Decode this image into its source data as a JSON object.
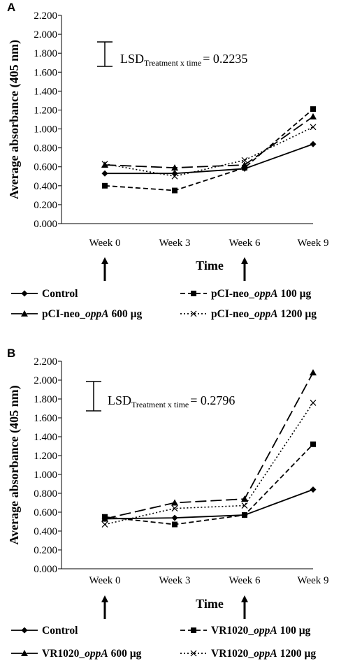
{
  "chart_data": [
    {
      "panel": "A",
      "type": "line",
      "ylabel": "Average absorbance (405 nm)",
      "xlabel": "Time",
      "categories": [
        "Week 0",
        "Week 3",
        "Week 6",
        "Week 9"
      ],
      "ylim": [
        0,
        2.2
      ],
      "yticks": [
        "0.000",
        "0.200",
        "0.400",
        "0.600",
        "0.800",
        "1.000",
        "1.200",
        "1.400",
        "1.600",
        "1.800",
        "2.000",
        "2.200"
      ],
      "lsd": {
        "prefix": "LSD",
        "subscript": "Treatment x time",
        "value_text": "= 0.2235",
        "value": 0.2235
      },
      "arrows_at": [
        "Week 0",
        "Week 6"
      ],
      "series": [
        {
          "name": "Control",
          "marker": "diamond",
          "dash": "solid",
          "values": [
            0.53,
            0.53,
            0.58,
            0.84
          ]
        },
        {
          "name": "pCI-neo_oppA 100 µg",
          "name_parts": [
            "pCI-neo_",
            "oppA",
            " 100 µg"
          ],
          "marker": "square",
          "dash": "short",
          "values": [
            0.4,
            0.35,
            0.59,
            1.21
          ]
        },
        {
          "name": "pCI-neo_oppA 600 µg",
          "name_parts": [
            "pCI-neo_",
            "oppA",
            " 600 µg"
          ],
          "marker": "triangle",
          "dash": "long",
          "values": [
            0.62,
            0.59,
            0.62,
            1.13
          ]
        },
        {
          "name": "pCI-neo_oppA 1200 µg",
          "name_parts": [
            "pCI-neo_",
            "oppA",
            " 1200 µg"
          ],
          "marker": "x",
          "dash": "dot",
          "values": [
            0.63,
            0.5,
            0.67,
            1.02
          ]
        }
      ]
    },
    {
      "panel": "B",
      "type": "line",
      "ylabel": "Average absorbance (405 nm)",
      "xlabel": "Time",
      "categories": [
        "Week 0",
        "Week 3",
        "Week 6",
        "Week 9"
      ],
      "ylim": [
        0,
        2.2
      ],
      "yticks": [
        "0.000",
        "0.200",
        "0.400",
        "0.600",
        "0.800",
        "1.000",
        "1.200",
        "1.400",
        "1.600",
        "1.800",
        "2.000",
        "2.200"
      ],
      "lsd": {
        "prefix": "LSD",
        "subscript": "Treatment x time",
        "value_text": "= 0.2796",
        "value": 0.2796
      },
      "arrows_at": [
        "Week 0",
        "Week 6"
      ],
      "series": [
        {
          "name": "Control",
          "marker": "diamond",
          "dash": "solid",
          "values": [
            0.53,
            0.54,
            0.57,
            0.84
          ]
        },
        {
          "name": "VR1020_oppA 100 µg",
          "name_parts": [
            "VR1020_",
            "oppA",
            " 100 µg"
          ],
          "marker": "square",
          "dash": "short",
          "values": [
            0.55,
            0.47,
            0.57,
            1.32
          ]
        },
        {
          "name": "VR1020_oppA 600 µg",
          "name_parts": [
            "VR1020_",
            "oppA",
            " 600 µg"
          ],
          "marker": "triangle",
          "dash": "long",
          "values": [
            0.53,
            0.7,
            0.74,
            2.08
          ]
        },
        {
          "name": "VR1020_oppA 1200 µg",
          "name_parts": [
            "VR1020_",
            "oppA",
            " 1200 µg"
          ],
          "marker": "x",
          "dash": "dot",
          "values": [
            0.47,
            0.64,
            0.67,
            1.76
          ]
        }
      ]
    }
  ]
}
